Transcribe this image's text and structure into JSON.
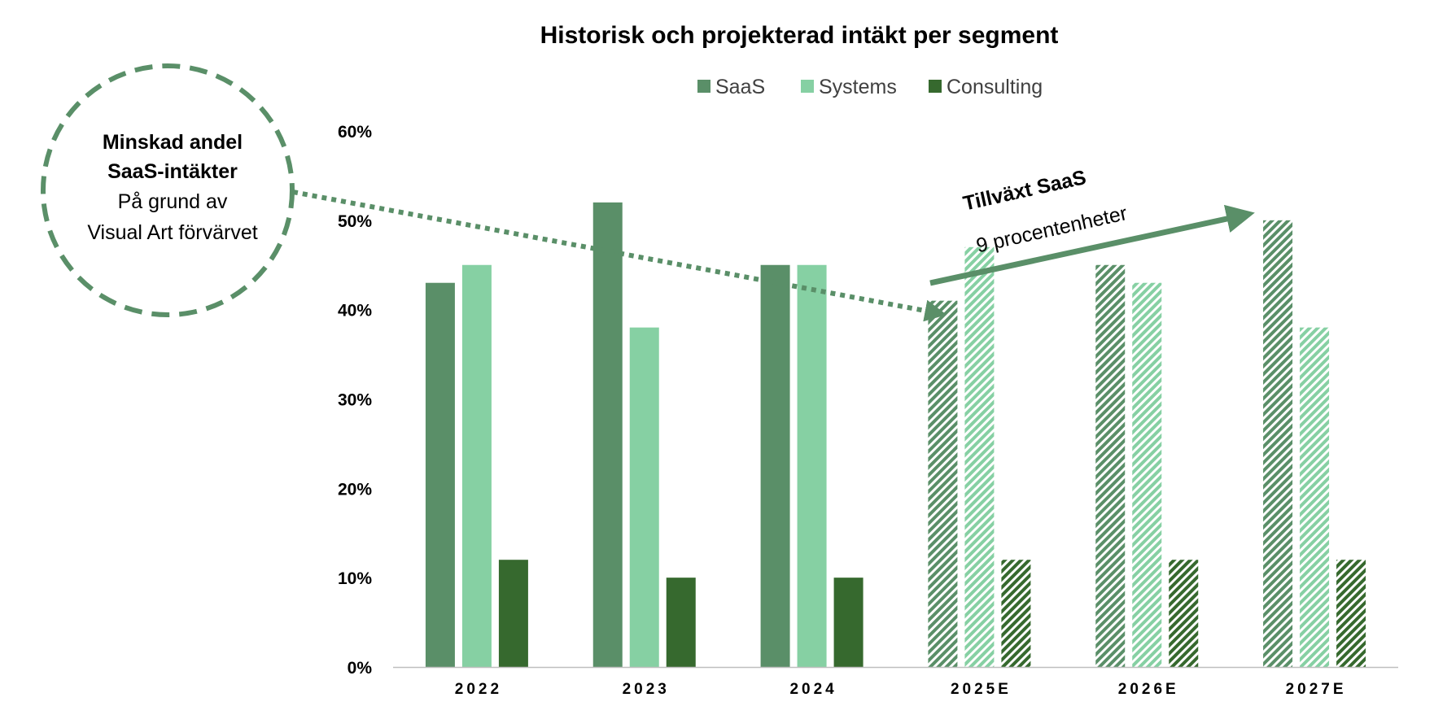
{
  "colors": {
    "saas": "#5a8f68",
    "systems": "#86d0a3",
    "consulting": "#36692e",
    "accent": "#5a8f68",
    "axis": "#bfbfbf"
  },
  "chart_data": {
    "type": "bar",
    "title": "Historisk och projekterad intäkt per segment",
    "categories": [
      "2022",
      "2023",
      "2024",
      "2025E",
      "2026E",
      "2027E"
    ],
    "projected_categories": [
      "2025E",
      "2026E",
      "2027E"
    ],
    "series": [
      {
        "name": "SaaS",
        "values": [
          43,
          52,
          45,
          41,
          45,
          50
        ]
      },
      {
        "name": "Systems",
        "values": [
          45,
          38,
          45,
          47,
          43,
          38
        ]
      },
      {
        "name": "Consulting",
        "values": [
          12,
          10,
          10,
          12,
          12,
          12
        ]
      }
    ],
    "y_ticks": [
      "0%",
      "10%",
      "20%",
      "30%",
      "40%",
      "50%",
      "60%"
    ],
    "ylim": [
      0,
      60
    ],
    "legend_position": "top-center",
    "grid": false
  },
  "callout": {
    "line1": "Minskad andel",
    "line2": "SaaS-intäkter",
    "line3": "På grund av",
    "line4": "Visual Art förvärvet"
  },
  "growth": {
    "label_bold": "Tillväxt SaaS",
    "label_normal": "9  procentenheter"
  }
}
